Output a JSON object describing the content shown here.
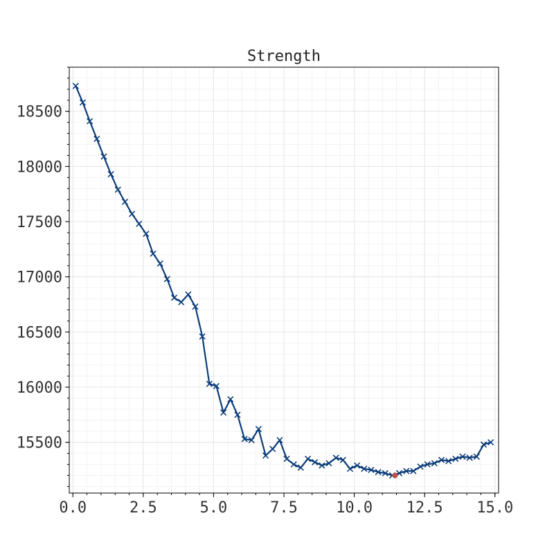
{
  "chart_data": {
    "type": "line",
    "title": "Strength",
    "xlabel": "",
    "ylabel": "",
    "xlim": [
      -0.13,
      15.13
    ],
    "ylim": [
      15040,
      18900
    ],
    "x_ticks": [
      0.0,
      2.5,
      5.0,
      7.5,
      10.0,
      12.5,
      15.0
    ],
    "x_tick_labels": [
      "0.0",
      "2.5",
      "5.0",
      "7.5",
      "10.0",
      "12.5",
      "15.0"
    ],
    "y_ticks": [
      15500,
      16000,
      16500,
      17000,
      17500,
      18000,
      18500
    ],
    "y_tick_labels": [
      "15500",
      "16000",
      "16500",
      "17000",
      "17500",
      "18000",
      "18500"
    ],
    "grid": true,
    "series": [
      {
        "color": "#0b3c78",
        "marker": "x",
        "x": [
          0.1,
          0.35,
          0.6,
          0.85,
          1.1,
          1.35,
          1.6,
          1.85,
          2.1,
          2.35,
          2.6,
          2.85,
          3.1,
          3.35,
          3.6,
          3.85,
          4.1,
          4.35,
          4.6,
          4.85,
          5.1,
          5.35,
          5.6,
          5.85,
          6.1,
          6.35,
          6.6,
          6.85,
          7.1,
          7.35,
          7.6,
          7.85,
          8.1,
          8.35,
          8.6,
          8.85,
          9.1,
          9.35,
          9.6,
          9.85,
          10.1,
          10.35,
          10.6,
          10.85,
          11.1,
          11.35,
          11.6,
          11.85,
          12.1,
          12.35,
          12.6,
          12.85,
          13.1,
          13.35,
          13.6,
          13.85,
          14.1,
          14.35,
          14.6,
          14.85
        ],
        "y": [
          18730,
          18580,
          18410,
          18250,
          18090,
          17930,
          17790,
          17680,
          17570,
          17480,
          17390,
          17210,
          17120,
          16980,
          16810,
          16770,
          16840,
          16730,
          16460,
          16030,
          16010,
          15770,
          15890,
          15750,
          15530,
          15520,
          15620,
          15380,
          15440,
          15520,
          15350,
          15300,
          15270,
          15350,
          15320,
          15290,
          15310,
          15360,
          15340,
          15260,
          15290,
          15260,
          15250,
          15230,
          15220,
          15200,
          15220,
          15240,
          15240,
          15280,
          15300,
          15310,
          15340,
          15330,
          15350,
          15370,
          15360,
          15370,
          15480,
          15500
        ]
      }
    ],
    "highlight_point": {
      "x": 11.45,
      "y": 15200,
      "color": "#c0504d"
    }
  }
}
